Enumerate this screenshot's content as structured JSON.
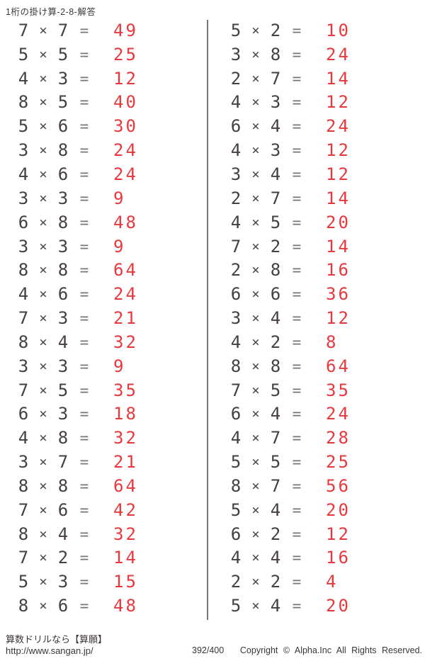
{
  "page": {
    "title": "1桁の掛け算-2-8-解答"
  },
  "worksheet": {
    "multiply_sign": "×",
    "equals_sign": "=",
    "left_column": [
      {
        "a": "7",
        "b": "7",
        "answer": "49"
      },
      {
        "a": "5",
        "b": "5",
        "answer": "25"
      },
      {
        "a": "4",
        "b": "3",
        "answer": "12"
      },
      {
        "a": "8",
        "b": "5",
        "answer": "40"
      },
      {
        "a": "5",
        "b": "6",
        "answer": "30"
      },
      {
        "a": "3",
        "b": "8",
        "answer": "24"
      },
      {
        "a": "4",
        "b": "6",
        "answer": "24"
      },
      {
        "a": "3",
        "b": "3",
        "answer": "9"
      },
      {
        "a": "6",
        "b": "8",
        "answer": "48"
      },
      {
        "a": "3",
        "b": "3",
        "answer": "9"
      },
      {
        "a": "8",
        "b": "8",
        "answer": "64"
      },
      {
        "a": "4",
        "b": "6",
        "answer": "24"
      },
      {
        "a": "7",
        "b": "3",
        "answer": "21"
      },
      {
        "a": "8",
        "b": "4",
        "answer": "32"
      },
      {
        "a": "3",
        "b": "3",
        "answer": "9"
      },
      {
        "a": "7",
        "b": "5",
        "answer": "35"
      },
      {
        "a": "6",
        "b": "3",
        "answer": "18"
      },
      {
        "a": "4",
        "b": "8",
        "answer": "32"
      },
      {
        "a": "3",
        "b": "7",
        "answer": "21"
      },
      {
        "a": "8",
        "b": "8",
        "answer": "64"
      },
      {
        "a": "7",
        "b": "6",
        "answer": "42"
      },
      {
        "a": "8",
        "b": "4",
        "answer": "32"
      },
      {
        "a": "7",
        "b": "2",
        "answer": "14"
      },
      {
        "a": "5",
        "b": "3",
        "answer": "15"
      },
      {
        "a": "8",
        "b": "6",
        "answer": "48"
      }
    ],
    "right_column": [
      {
        "a": "5",
        "b": "2",
        "answer": "10"
      },
      {
        "a": "3",
        "b": "8",
        "answer": "24"
      },
      {
        "a": "2",
        "b": "7",
        "answer": "14"
      },
      {
        "a": "4",
        "b": "3",
        "answer": "12"
      },
      {
        "a": "6",
        "b": "4",
        "answer": "24"
      },
      {
        "a": "4",
        "b": "3",
        "answer": "12"
      },
      {
        "a": "3",
        "b": "4",
        "answer": "12"
      },
      {
        "a": "2",
        "b": "7",
        "answer": "14"
      },
      {
        "a": "4",
        "b": "5",
        "answer": "20"
      },
      {
        "a": "7",
        "b": "2",
        "answer": "14"
      },
      {
        "a": "2",
        "b": "8",
        "answer": "16"
      },
      {
        "a": "6",
        "b": "6",
        "answer": "36"
      },
      {
        "a": "3",
        "b": "4",
        "answer": "12"
      },
      {
        "a": "4",
        "b": "2",
        "answer": "8"
      },
      {
        "a": "8",
        "b": "8",
        "answer": "64"
      },
      {
        "a": "7",
        "b": "5",
        "answer": "35"
      },
      {
        "a": "6",
        "b": "4",
        "answer": "24"
      },
      {
        "a": "4",
        "b": "7",
        "answer": "28"
      },
      {
        "a": "5",
        "b": "5",
        "answer": "25"
      },
      {
        "a": "8",
        "b": "7",
        "answer": "56"
      },
      {
        "a": "5",
        "b": "4",
        "answer": "20"
      },
      {
        "a": "6",
        "b": "2",
        "answer": "12"
      },
      {
        "a": "4",
        "b": "4",
        "answer": "16"
      },
      {
        "a": "2",
        "b": "2",
        "answer": "4"
      },
      {
        "a": "5",
        "b": "4",
        "answer": "20"
      }
    ]
  },
  "footer": {
    "promo_text": "算数ドリルなら【算願】",
    "url": "http://www.sangan.jp/",
    "page_indicator": "392/400",
    "copyright": "Copyright © Alpha.Inc All Rights Reserved."
  },
  "colors": {
    "answer_red": "#e8383d",
    "ink_dark": "#45403d",
    "divider_gray": "#7b7673"
  }
}
